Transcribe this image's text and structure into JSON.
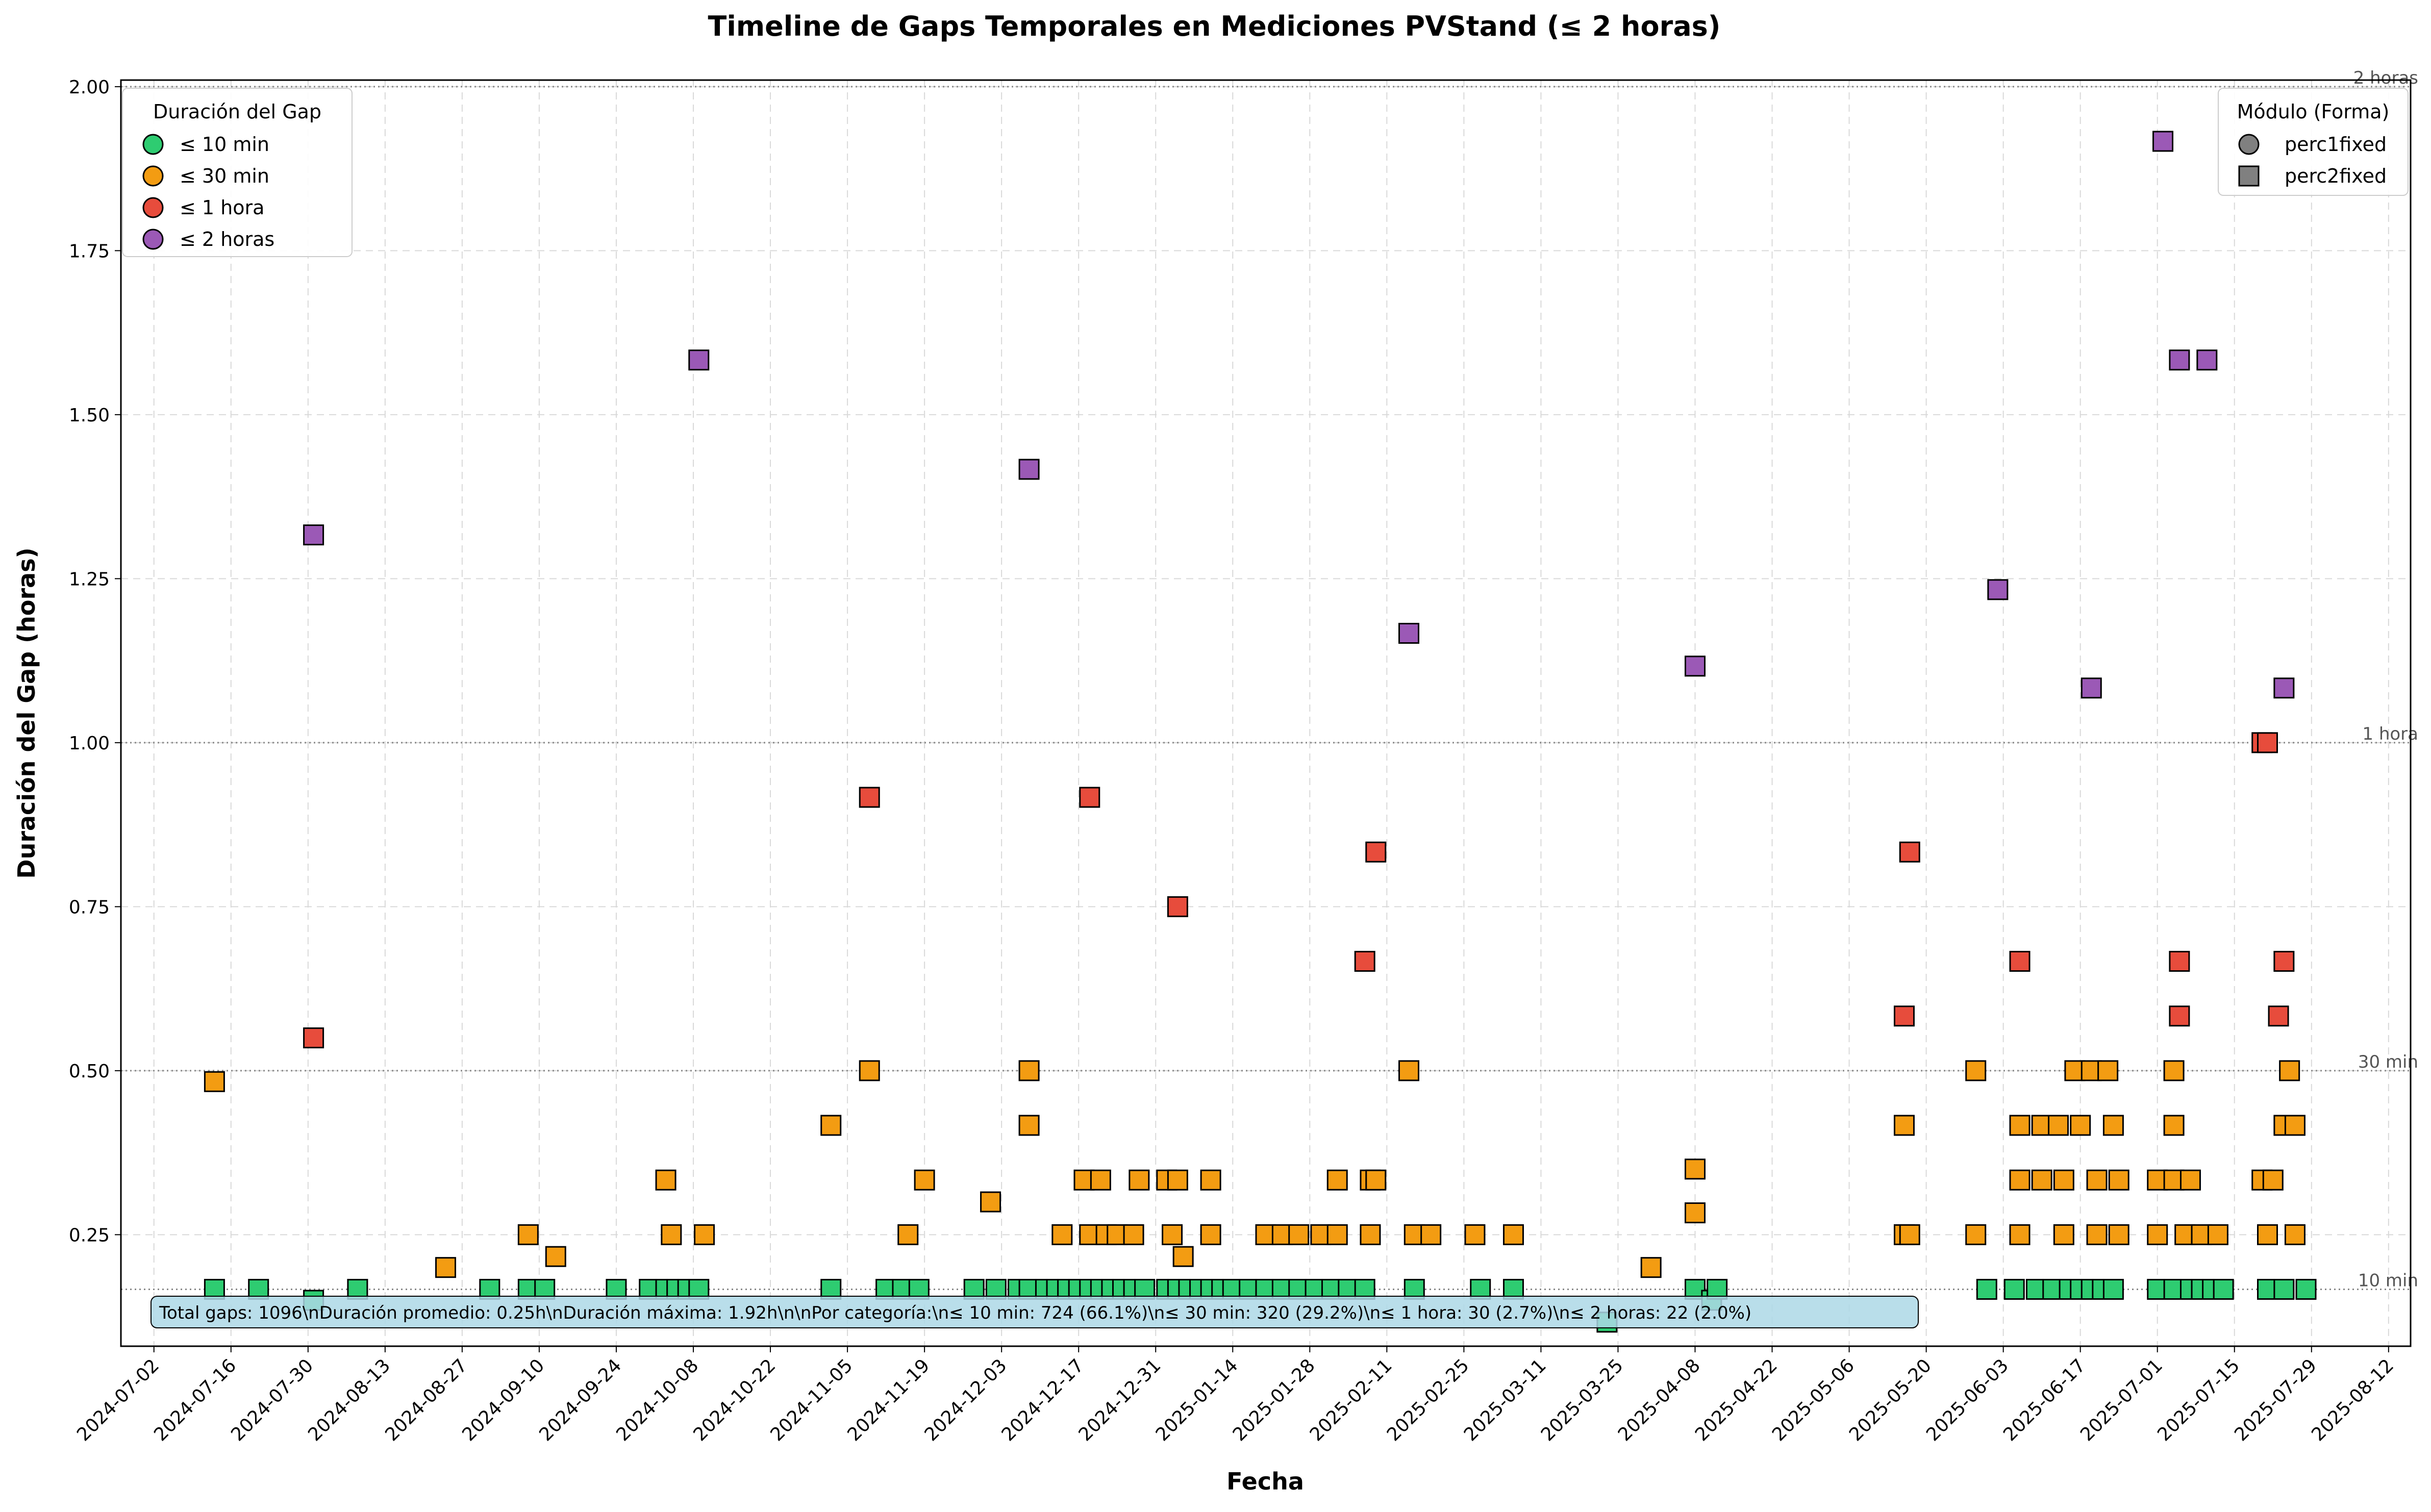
{
  "chart_data": {
    "type": "scatter",
    "title": "Timeline de Gaps Temporales en Mediciones PVStand (≤ 2 horas)",
    "xlabel": "Fecha",
    "ylabel": "Duración del Gap (horas)",
    "xlim": [
      "2024-06-26",
      "2025-08-16"
    ],
    "ylim": [
      0.08,
      2.01
    ],
    "xticks": [
      "2024-07-02",
      "2024-07-16",
      "2024-07-30",
      "2024-08-13",
      "2024-08-27",
      "2024-09-10",
      "2024-09-24",
      "2024-10-08",
      "2024-10-22",
      "2024-11-05",
      "2024-11-19",
      "2024-12-03",
      "2024-12-17",
      "2024-12-31",
      "2025-01-14",
      "2025-01-28",
      "2025-02-11",
      "2025-02-25",
      "2025-03-11",
      "2025-03-25",
      "2025-04-08",
      "2025-04-22",
      "2025-05-06",
      "2025-05-20",
      "2025-06-03",
      "2025-06-17",
      "2025-07-01",
      "2025-07-15",
      "2025-07-29",
      "2025-08-12"
    ],
    "yticks": [
      "0.25",
      "0.50",
      "0.75",
      "1.00",
      "1.25",
      "1.50",
      "1.75",
      "2.00"
    ],
    "ytick_values": [
      0.25,
      0.5,
      0.75,
      1.0,
      1.25,
      1.5,
      1.75,
      2.0
    ],
    "grid": true,
    "reference_lines": [
      {
        "y": 2.0,
        "label": "2 horas"
      },
      {
        "y": 1.0,
        "label": "1 hora"
      },
      {
        "y": 0.5,
        "label": "30 min"
      },
      {
        "y": 0.1667,
        "label": "10 min"
      }
    ],
    "legend_color": {
      "title": "Duración del Gap",
      "placement": "top-left",
      "entries": [
        {
          "label": "≤ 10 min",
          "color": "#2ecc71"
        },
        {
          "label": "≤ 30 min",
          "color": "#f39c12"
        },
        {
          "label": "≤ 1 hora",
          "color": "#e74c3c"
        },
        {
          "label": "≤ 2 horas",
          "color": "#9b59b6"
        }
      ]
    },
    "legend_shape": {
      "title": "Módulo (Forma)",
      "placement": "top-right",
      "entries": [
        {
          "label": "perc1fixed",
          "marker": "circle"
        },
        {
          "label": "perc2fixed",
          "marker": "square"
        }
      ]
    },
    "stats_text": "Total gaps: 1096\\nDuración promedio: 0.25h\\nDuración máxima: 1.92h\\n\\nPor categoría:\\n≤ 10 min: 724 (66.1%)\\n≤ 30 min: 320 (29.2%)\\n≤ 1 hora: 30 (2.7%)\\n≤ 2 horas: 22 (2.0%)",
    "series": [
      {
        "category": "≤ 10 min",
        "color": "#2ecc71",
        "points": [
          [
            "2024-07-13",
            0.1667
          ],
          [
            "2024-07-21",
            0.1667
          ],
          [
            "2024-07-31",
            0.15
          ],
          [
            "2024-08-08",
            0.1667
          ],
          [
            "2024-09-01",
            0.1667
          ],
          [
            "2024-09-08",
            0.1667
          ],
          [
            "2024-09-11",
            0.1667
          ],
          [
            "2024-09-24",
            0.1667
          ],
          [
            "2024-09-30",
            0.1667
          ],
          [
            "2024-10-03",
            0.1667
          ],
          [
            "2024-10-05",
            0.1667
          ],
          [
            "2024-10-07",
            0.1667
          ],
          [
            "2024-10-09",
            0.1667
          ],
          [
            "2024-11-02",
            0.1667
          ],
          [
            "2024-11-12",
            0.1667
          ],
          [
            "2024-11-15",
            0.1667
          ],
          [
            "2024-11-18",
            0.1667
          ],
          [
            "2024-11-28",
            0.1667
          ],
          [
            "2024-12-02",
            0.1667
          ],
          [
            "2024-12-06",
            0.1667
          ],
          [
            "2024-12-08",
            0.1667
          ],
          [
            "2024-12-11",
            0.1667
          ],
          [
            "2024-12-13",
            0.1667
          ],
          [
            "2024-12-15",
            0.1667
          ],
          [
            "2024-12-17",
            0.1667
          ],
          [
            "2024-12-19",
            0.1667
          ],
          [
            "2024-12-21",
            0.1667
          ],
          [
            "2024-12-23",
            0.1667
          ],
          [
            "2024-12-25",
            0.1667
          ],
          [
            "2024-12-27",
            0.1667
          ],
          [
            "2024-12-29",
            0.1667
          ],
          [
            "2025-01-02",
            0.1667
          ],
          [
            "2025-01-04",
            0.1667
          ],
          [
            "2025-01-06",
            0.1667
          ],
          [
            "2025-01-08",
            0.1667
          ],
          [
            "2025-01-10",
            0.1667
          ],
          [
            "2025-01-12",
            0.1667
          ],
          [
            "2025-01-14",
            0.1667
          ],
          [
            "2025-01-17",
            0.1667
          ],
          [
            "2025-01-20",
            0.1667
          ],
          [
            "2025-01-23",
            0.1667
          ],
          [
            "2025-01-26",
            0.1667
          ],
          [
            "2025-01-29",
            0.1667
          ],
          [
            "2025-02-01",
            0.1667
          ],
          [
            "2025-02-04",
            0.1667
          ],
          [
            "2025-02-07",
            0.1667
          ],
          [
            "2025-02-16",
            0.1667
          ],
          [
            "2025-02-28",
            0.1667
          ],
          [
            "2025-03-06",
            0.1667
          ],
          [
            "2025-03-23",
            0.1167
          ],
          [
            "2025-04-08",
            0.1667
          ],
          [
            "2025-04-11",
            0.15
          ],
          [
            "2025-04-12",
            0.1667
          ],
          [
            "2025-05-31",
            0.1667
          ],
          [
            "2025-06-05",
            0.1667
          ],
          [
            "2025-06-09",
            0.1667
          ],
          [
            "2025-06-12",
            0.1667
          ],
          [
            "2025-06-15",
            0.1667
          ],
          [
            "2025-06-17",
            0.1667
          ],
          [
            "2025-06-19",
            0.1667
          ],
          [
            "2025-06-21",
            0.1667
          ],
          [
            "2025-06-23",
            0.1667
          ],
          [
            "2025-07-01",
            0.1667
          ],
          [
            "2025-07-04",
            0.1667
          ],
          [
            "2025-07-07",
            0.1667
          ],
          [
            "2025-07-09",
            0.1667
          ],
          [
            "2025-07-11",
            0.1667
          ],
          [
            "2025-07-13",
            0.1667
          ],
          [
            "2025-07-21",
            0.1667
          ],
          [
            "2025-07-24",
            0.1667
          ],
          [
            "2025-07-28",
            0.1667
          ]
        ]
      },
      {
        "category": "≤ 30 min",
        "color": "#f39c12",
        "points": [
          [
            "2024-07-13",
            0.4833
          ],
          [
            "2024-08-24",
            0.2
          ],
          [
            "2024-09-08",
            0.25
          ],
          [
            "2024-09-13",
            0.2167
          ],
          [
            "2024-10-03",
            0.3333
          ],
          [
            "2024-10-04",
            0.25
          ],
          [
            "2024-10-10",
            0.25
          ],
          [
            "2024-11-02",
            0.4167
          ],
          [
            "2024-11-09",
            0.5
          ],
          [
            "2024-11-16",
            0.25
          ],
          [
            "2024-11-19",
            0.3333
          ],
          [
            "2024-12-01",
            0.3
          ],
          [
            "2024-12-08",
            0.5
          ],
          [
            "2024-12-08",
            0.4167
          ],
          [
            "2024-12-14",
            0.25
          ],
          [
            "2024-12-18",
            0.3333
          ],
          [
            "2024-12-19",
            0.25
          ],
          [
            "2024-12-21",
            0.3333
          ],
          [
            "2024-12-22",
            0.25
          ],
          [
            "2024-12-24",
            0.25
          ],
          [
            "2024-12-27",
            0.25
          ],
          [
            "2024-12-28",
            0.3333
          ],
          [
            "2025-01-02",
            0.3333
          ],
          [
            "2025-01-03",
            0.25
          ],
          [
            "2025-01-04",
            0.3333
          ],
          [
            "2025-01-05",
            0.2167
          ],
          [
            "2025-01-10",
            0.3333
          ],
          [
            "2025-01-10",
            0.25
          ],
          [
            "2025-01-20",
            0.25
          ],
          [
            "2025-01-23",
            0.25
          ],
          [
            "2025-01-26",
            0.25
          ],
          [
            "2025-01-30",
            0.25
          ],
          [
            "2025-02-02",
            0.3333
          ],
          [
            "2025-02-02",
            0.25
          ],
          [
            "2025-02-08",
            0.25
          ],
          [
            "2025-02-08",
            0.3333
          ],
          [
            "2025-02-09",
            0.3333
          ],
          [
            "2025-02-15",
            0.5
          ],
          [
            "2025-02-16",
            0.25
          ],
          [
            "2025-02-19",
            0.25
          ],
          [
            "2025-02-27",
            0.25
          ],
          [
            "2025-03-06",
            0.25
          ],
          [
            "2025-03-31",
            0.2
          ],
          [
            "2025-04-08",
            0.35
          ],
          [
            "2025-04-08",
            0.2833
          ],
          [
            "2025-05-16",
            0.4167
          ],
          [
            "2025-05-16",
            0.25
          ],
          [
            "2025-05-17",
            0.25
          ],
          [
            "2025-05-29",
            0.5
          ],
          [
            "2025-05-29",
            0.25
          ],
          [
            "2025-06-06",
            0.4167
          ],
          [
            "2025-06-06",
            0.3333
          ],
          [
            "2025-06-06",
            0.25
          ],
          [
            "2025-06-10",
            0.4167
          ],
          [
            "2025-06-10",
            0.3333
          ],
          [
            "2025-06-13",
            0.4167
          ],
          [
            "2025-06-14",
            0.3333
          ],
          [
            "2025-06-14",
            0.25
          ],
          [
            "2025-06-16",
            0.5
          ],
          [
            "2025-06-17",
            0.4167
          ],
          [
            "2025-06-19",
            0.5
          ],
          [
            "2025-06-20",
            0.3333
          ],
          [
            "2025-06-20",
            0.25
          ],
          [
            "2025-06-22",
            0.5
          ],
          [
            "2025-06-23",
            0.4167
          ],
          [
            "2025-06-24",
            0.3333
          ],
          [
            "2025-06-24",
            0.25
          ],
          [
            "2025-07-01",
            0.3333
          ],
          [
            "2025-07-01",
            0.25
          ],
          [
            "2025-07-04",
            0.5
          ],
          [
            "2025-07-04",
            0.4167
          ],
          [
            "2025-07-04",
            0.3333
          ],
          [
            "2025-07-06",
            0.25
          ],
          [
            "2025-07-07",
            0.3333
          ],
          [
            "2025-07-09",
            0.25
          ],
          [
            "2025-07-12",
            0.25
          ],
          [
            "2025-07-20",
            0.3333
          ],
          [
            "2025-07-21",
            0.25
          ],
          [
            "2025-07-22",
            0.3333
          ],
          [
            "2025-07-24",
            0.4167
          ],
          [
            "2025-07-25",
            0.5
          ],
          [
            "2025-07-26",
            0.25
          ],
          [
            "2025-07-26",
            0.4167
          ]
        ]
      },
      {
        "category": "≤ 1 hora",
        "color": "#e74c3c",
        "points": [
          [
            "2024-07-31",
            0.55
          ],
          [
            "2024-11-09",
            0.9167
          ],
          [
            "2024-12-19",
            0.9167
          ],
          [
            "2025-01-04",
            0.75
          ],
          [
            "2025-02-07",
            0.6667
          ],
          [
            "2025-02-09",
            0.8333
          ],
          [
            "2025-05-16",
            0.5833
          ],
          [
            "2025-05-17",
            0.8333
          ],
          [
            "2025-06-06",
            0.6667
          ],
          [
            "2025-07-05",
            0.5833
          ],
          [
            "2025-07-05",
            0.6667
          ],
          [
            "2025-07-20",
            1.0
          ],
          [
            "2025-07-21",
            1.0
          ],
          [
            "2025-07-23",
            0.5833
          ],
          [
            "2025-07-24",
            0.6667
          ]
        ]
      },
      {
        "category": "≤ 2 horas",
        "color": "#9b59b6",
        "points": [
          [
            "2024-07-31",
            1.3167
          ],
          [
            "2024-10-09",
            1.5833
          ],
          [
            "2024-12-08",
            1.4167
          ],
          [
            "2025-02-15",
            1.1667
          ],
          [
            "2025-04-08",
            1.1167
          ],
          [
            "2025-06-02",
            1.2333
          ],
          [
            "2025-06-19",
            1.0833
          ],
          [
            "2025-07-02",
            1.9167
          ],
          [
            "2025-07-05",
            1.5833
          ],
          [
            "2025-07-10",
            1.5833
          ],
          [
            "2025-07-24",
            1.0833
          ]
        ]
      }
    ]
  }
}
